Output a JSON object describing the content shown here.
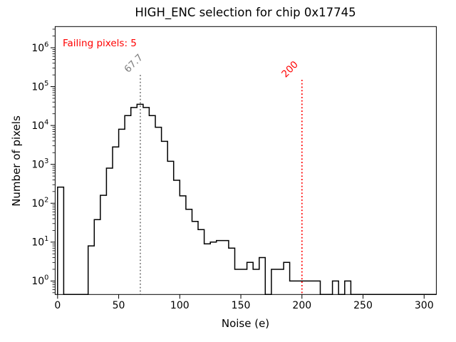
{
  "title": "HIGH_ENC selection for chip 0x17745",
  "chart_data": {
    "type": "bar",
    "subtype": "histogram-step",
    "title": "HIGH_ENC selection for chip 0x17745",
    "xlabel": "Noise (e)",
    "ylabel": "Number of pixels",
    "x_scale": "linear",
    "y_scale": "log",
    "xlim": [
      -2,
      310
    ],
    "ylim": [
      0.45,
      3500000
    ],
    "x_ticks": [
      0,
      50,
      100,
      150,
      200,
      250,
      300
    ],
    "y_tick_exponents": [
      0,
      1,
      2,
      3,
      4,
      5,
      6
    ],
    "grid": false,
    "line_color": "#000000",
    "histogram": {
      "bin_start": 0,
      "bin_width": 5,
      "counts": [
        260,
        0,
        0,
        0,
        0,
        8,
        38,
        160,
        800,
        2800,
        8000,
        18000,
        29000,
        35000,
        29000,
        18000,
        9000,
        3900,
        1200,
        390,
        155,
        70,
        34,
        21,
        9,
        10,
        11,
        11,
        7,
        2,
        2,
        3,
        2,
        4,
        0,
        2,
        2,
        3,
        1,
        1,
        1,
        1,
        1,
        0,
        0,
        1,
        0,
        1,
        0,
        0,
        0,
        0,
        0,
        0,
        0,
        0,
        0,
        0,
        0,
        0,
        0,
        0
      ]
    },
    "vlines": [
      {
        "x": 67.7,
        "label": "67.7",
        "color": "#7f7f7f",
        "top_value": 200000,
        "style": "dotted"
      },
      {
        "x": 200,
        "label": "200",
        "color": "#ff0000",
        "top_value": 150000,
        "style": "dotted"
      }
    ],
    "annotation": {
      "text": "Failing pixels: 5",
      "color": "#ff0000"
    }
  }
}
